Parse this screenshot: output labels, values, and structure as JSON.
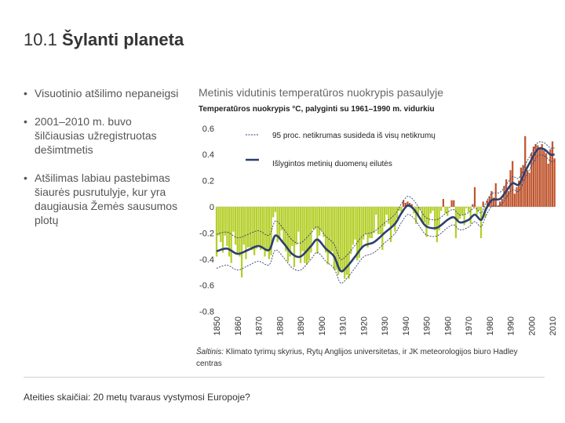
{
  "slide": {
    "number": "10.1",
    "title": "Šylanti planeta"
  },
  "bullets": [
    "Visuotinio atšilimo nepaneigsi",
    "2001–2010 m. buvo šilčiausias užregistruotas dešimtmetis",
    "Atšilimas labiau pastebimas šiaurės pusrutulyje, kur yra daugiausia Žemės sausumos plotų"
  ],
  "bullet_symbol": "•",
  "chart_heading": "Metinis vidutinis temperatūros nuokrypis pasaulyje",
  "source": {
    "label": "Šaltinis:",
    "text": "Klimato tyrimų skyrius, Rytų Anglijos universitetas, ir JK meteorologijos biuro Hadley centras"
  },
  "footer": "Ateities skaičiai: 20 metų tvaraus vystymosi Europoje?",
  "colors": {
    "positive_bar": "#c0562f",
    "negative_bar": "#b5cf2a",
    "smoothed_line": "#2b3f70",
    "uncertainty_line": "#2b3f70"
  },
  "chart_data": {
    "type": "bar",
    "title": "Temperatūros nuokrypis °C, palyginti su 1961–1990 m. vidurkiu",
    "x_ticks": [
      "1850",
      "1860",
      "1870",
      "1880",
      "1890",
      "1900",
      "1910",
      "1920",
      "1930",
      "1940",
      "1950",
      "1960",
      "1970",
      "1980",
      "1990",
      "2000",
      "2010"
    ],
    "y_ticks": [
      "0.6",
      "0.4",
      "0.2",
      "0",
      "-0.2",
      "-0.4",
      "-0.6",
      "-0.8"
    ],
    "ylim": [
      -0.8,
      0.6
    ],
    "xlim": [
      1850,
      2010
    ],
    "legend": {
      "uncertainty": "95 proc. netikrumas susideda iš visų netikrumų",
      "smoothed": "Išlygintos metinių duomenų eilutės"
    },
    "smoothed_points": [
      [
        1850,
        -0.34
      ],
      [
        1855,
        -0.32
      ],
      [
        1860,
        -0.36
      ],
      [
        1865,
        -0.33
      ],
      [
        1870,
        -0.3
      ],
      [
        1875,
        -0.33
      ],
      [
        1878,
        -0.22
      ],
      [
        1882,
        -0.28
      ],
      [
        1886,
        -0.36
      ],
      [
        1890,
        -0.38
      ],
      [
        1895,
        -0.3
      ],
      [
        1898,
        -0.25
      ],
      [
        1902,
        -0.32
      ],
      [
        1906,
        -0.38
      ],
      [
        1909,
        -0.49
      ],
      [
        1912,
        -0.46
      ],
      [
        1916,
        -0.38
      ],
      [
        1920,
        -0.3
      ],
      [
        1925,
        -0.27
      ],
      [
        1930,
        -0.2
      ],
      [
        1935,
        -0.13
      ],
      [
        1938,
        -0.05
      ],
      [
        1941,
        0.01
      ],
      [
        1944,
        -0.02
      ],
      [
        1947,
        -0.09
      ],
      [
        1950,
        -0.15
      ],
      [
        1955,
        -0.16
      ],
      [
        1960,
        -0.1
      ],
      [
        1963,
        -0.08
      ],
      [
        1966,
        -0.12
      ],
      [
        1970,
        -0.1
      ],
      [
        1973,
        -0.06
      ],
      [
        1976,
        -0.1
      ],
      [
        1978,
        -0.03
      ],
      [
        1981,
        0.05
      ],
      [
        1985,
        0.06
      ],
      [
        1988,
        0.12
      ],
      [
        1991,
        0.18
      ],
      [
        1994,
        0.17
      ],
      [
        1997,
        0.27
      ],
      [
        2000,
        0.36
      ],
      [
        2003,
        0.44
      ],
      [
        2006,
        0.44
      ],
      [
        2009,
        0.4
      ],
      [
        2011,
        0.4
      ]
    ],
    "uncertainty_width": [
      [
        1850,
        0.13
      ],
      [
        1880,
        0.11
      ],
      [
        1910,
        0.09
      ],
      [
        1940,
        0.07
      ],
      [
        1960,
        0.06
      ],
      [
        1980,
        0.05
      ],
      [
        2011,
        0.05
      ]
    ],
    "annual_values": [
      -0.38,
      -0.22,
      -0.27,
      -0.35,
      -0.22,
      -0.3,
      -0.38,
      -0.43,
      -0.19,
      -0.29,
      -0.36,
      -0.38,
      -0.54,
      -0.29,
      -0.4,
      -0.31,
      -0.31,
      -0.33,
      -0.37,
      -0.32,
      -0.3,
      -0.33,
      -0.31,
      -0.38,
      -0.34,
      -0.4,
      -0.37,
      -0.08,
      -0.04,
      -0.27,
      -0.25,
      -0.18,
      -0.28,
      -0.34,
      -0.42,
      -0.38,
      -0.3,
      -0.46,
      -0.29,
      -0.19,
      -0.43,
      -0.34,
      -0.43,
      -0.44,
      -0.41,
      -0.35,
      -0.17,
      -0.17,
      -0.36,
      -0.22,
      -0.18,
      -0.23,
      -0.35,
      -0.44,
      -0.36,
      -0.34,
      -0.48,
      -0.48,
      -0.52,
      -0.49,
      -0.5,
      -0.55,
      -0.52,
      -0.55,
      -0.36,
      -0.29,
      -0.25,
      -0.41,
      -0.39,
      -0.32,
      -0.25,
      -0.21,
      -0.31,
      -0.24,
      -0.24,
      -0.2,
      -0.06,
      -0.21,
      -0.21,
      -0.33,
      -0.15,
      -0.06,
      -0.13,
      -0.27,
      -0.15,
      -0.19,
      -0.09,
      -0.03,
      -0.04,
      0.05,
      0.03,
      0.04,
      0.03,
      0.02,
      -0.05,
      -0.13,
      -0.07,
      -0.02,
      -0.11,
      -0.12,
      -0.23,
      -0.14,
      -0.05,
      -0.03,
      -0.18,
      -0.27,
      -0.18,
      -0.03,
      0.06,
      -0.05,
      -0.07,
      -0.01,
      0.05,
      0.05,
      -0.24,
      -0.1,
      -0.09,
      -0.06,
      -0.14,
      -0.01,
      -0.04,
      -0.13,
      0.02,
      0.15,
      -0.06,
      -0.03,
      -0.24,
      0.04,
      -0.08,
      0.05,
      0.08,
      0.12,
      0.07,
      0.18,
      0.01,
      0.04,
      0.06,
      0.16,
      0.21,
      0.12,
      0.28,
      0.35,
      0.1,
      0.15,
      0.2,
      0.3,
      0.32,
      0.54,
      0.28,
      0.26,
      0.41,
      0.46,
      0.48,
      0.47,
      0.44,
      0.48,
      0.43,
      0.41,
      0.33,
      0.44,
      0.5,
      0.37
    ]
  }
}
